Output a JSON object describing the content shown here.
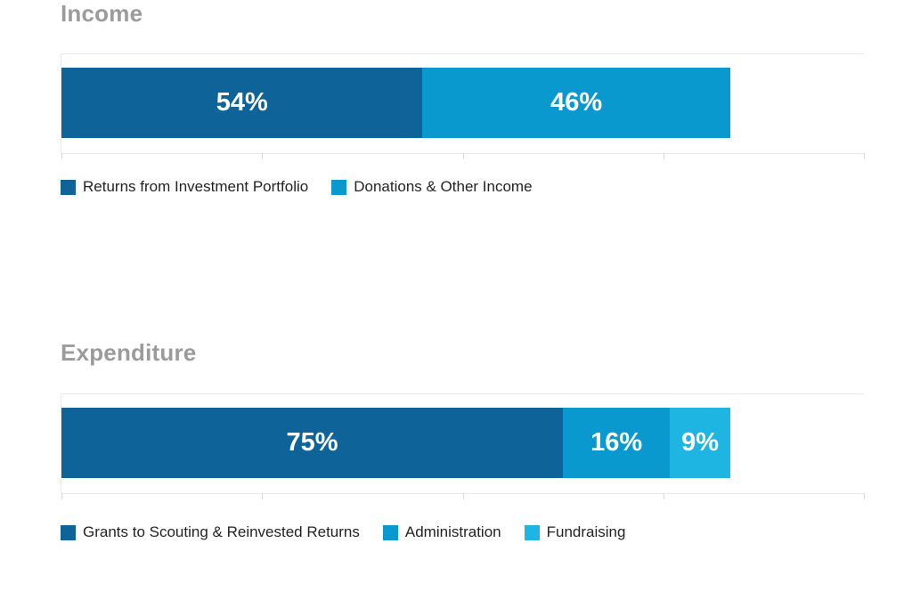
{
  "page": {
    "background": "#ffffff"
  },
  "chart_data": [
    {
      "type": "bar",
      "orientation": "horizontal",
      "stacked": true,
      "title": "Income",
      "categories": [
        "Income"
      ],
      "series": [
        {
          "name": "Returns from Investment Portfolio",
          "values": [
            54
          ],
          "color": "#0e6398"
        },
        {
          "name": "Donations & Other Income",
          "values": [
            46
          ],
          "color": "#0999cf"
        }
      ],
      "data_labels": [
        "54%",
        "46%"
      ],
      "label_color": "#ffffff",
      "xlim": [
        0,
        120
      ],
      "ticks": [
        0,
        30,
        60,
        90,
        120
      ],
      "tick_labels_visible": false,
      "grid": false,
      "legend_position": "bottom"
    },
    {
      "type": "bar",
      "orientation": "horizontal",
      "stacked": true,
      "title": "Expenditure",
      "categories": [
        "Expenditure"
      ],
      "series": [
        {
          "name": "Grants to Scouting & Reinvested Returns",
          "values": [
            75
          ],
          "color": "#0e6398"
        },
        {
          "name": "Administration",
          "values": [
            16
          ],
          "color": "#0999cf"
        },
        {
          "name": "Fundraising",
          "values": [
            9
          ],
          "color": "#1fb5e3"
        }
      ],
      "data_labels": [
        "75%",
        "16%",
        "9%"
      ],
      "label_color": "#ffffff",
      "xlim": [
        0,
        120
      ],
      "ticks": [
        0,
        30,
        60,
        90,
        120
      ],
      "tick_labels_visible": false,
      "grid": false,
      "legend_position": "bottom"
    }
  ],
  "colors": {
    "title_gray": "#9b9b9b",
    "axis_line": "#e8e8e6",
    "tick": "#d9d9d6",
    "legend_text": "#232323"
  }
}
